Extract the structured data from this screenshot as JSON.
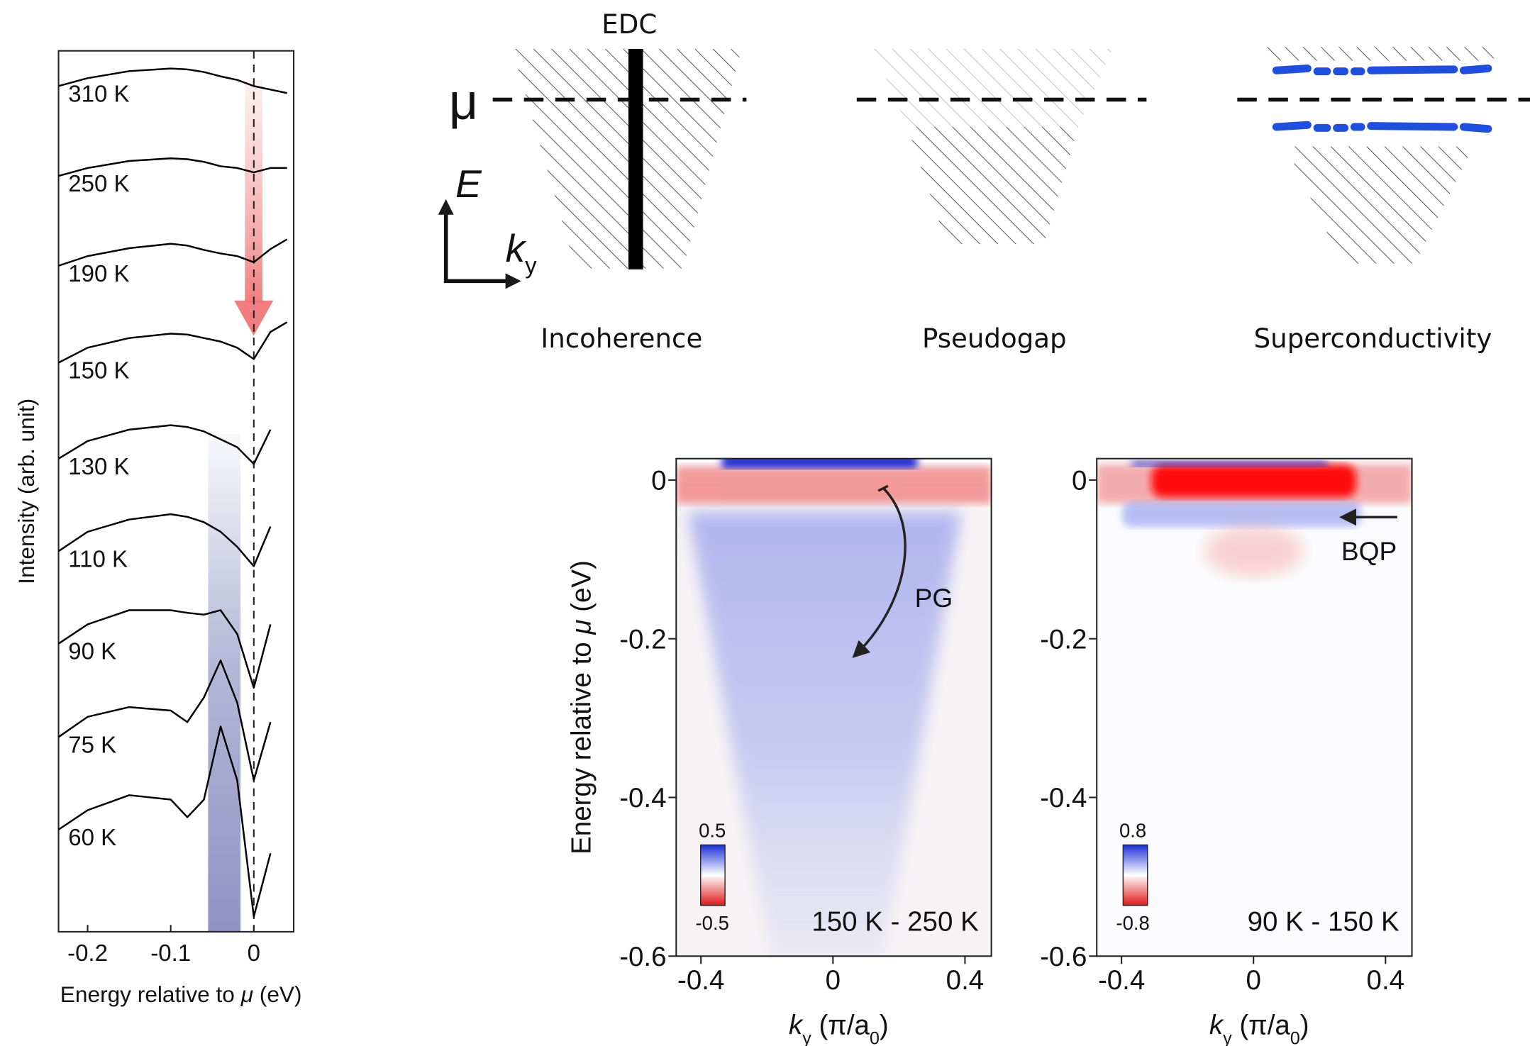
{
  "chart_data": [
    {
      "type": "line",
      "x_label": [
        {
          "text": "Energy relative to "
        },
        {
          "text": "μ",
          "style": "italic"
        },
        {
          "text": " (eV)"
        }
      ],
      "y_label": "Intensity (arb. unit)",
      "xlim": [
        -0.235,
        0.048
      ],
      "ylim": [
        0,
        10
      ],
      "xticks": [
        -0.2,
        -0.1,
        0
      ],
      "x": [
        -0.235,
        -0.2,
        -0.15,
        -0.1,
        -0.08,
        -0.06,
        -0.04,
        -0.02,
        0,
        0.02,
        0.04
      ],
      "series": [
        {
          "name": "310 K",
          "color": "#000000",
          "label_color": "#333333",
          "values": [
            9.6,
            9.69,
            9.77,
            9.8,
            9.79,
            9.76,
            9.71,
            9.67,
            9.6,
            9.56,
            9.52
          ]
        },
        {
          "name": "250 K",
          "color": "#000000",
          "label_color": "#333333",
          "values": [
            8.58,
            8.67,
            8.75,
            8.78,
            8.77,
            8.74,
            8.69,
            8.67,
            8.62,
            8.67,
            8.67
          ]
        },
        {
          "name": "190 K",
          "color": "#000000",
          "label_color": "#333333",
          "values": [
            7.56,
            7.67,
            7.76,
            7.81,
            7.79,
            7.74,
            7.7,
            7.67,
            7.6,
            7.75,
            7.86
          ]
        },
        {
          "name": "150 K",
          "color": "#000000",
          "label_color": "#333333",
          "values": [
            6.46,
            6.63,
            6.74,
            6.79,
            6.78,
            6.74,
            6.7,
            6.63,
            6.5,
            6.81,
            6.92
          ]
        },
        {
          "name": "130 K",
          "color": "#000000",
          "label_color": "#2446d8",
          "values": [
            5.37,
            5.57,
            5.7,
            5.75,
            5.73,
            5.68,
            5.59,
            5.5,
            5.31,
            5.7,
            null
          ]
        },
        {
          "name": "110 K",
          "color": "#000000",
          "label_color": "#333333",
          "values": [
            4.32,
            4.54,
            4.68,
            4.74,
            4.71,
            4.65,
            4.54,
            4.37,
            4.15,
            4.6,
            null
          ]
        },
        {
          "name": "90 K",
          "color": "#000000",
          "label_color": "#333333",
          "values": [
            3.27,
            3.49,
            3.65,
            3.65,
            3.62,
            3.6,
            3.65,
            3.38,
            2.77,
            3.49,
            null
          ]
        },
        {
          "name": "75 K",
          "color": "#000000",
          "label_color": "#333333",
          "values": [
            2.21,
            2.44,
            2.55,
            2.51,
            2.38,
            2.66,
            3.08,
            2.6,
            1.72,
            2.38,
            null
          ]
        },
        {
          "name": "60 K",
          "color": "#000000",
          "label_color": "#333333",
          "values": [
            1.16,
            1.38,
            1.55,
            1.5,
            1.3,
            1.5,
            2.33,
            1.72,
            0.17,
            0.89,
            null
          ]
        }
      ],
      "reference_x": 0,
      "highlight_x": [
        -0.055,
        -0.016
      ],
      "highlight_top": 5.65,
      "highlight_color": "#7a7fb8"
    },
    {
      "type": "heatmap",
      "y_label": [
        {
          "text": "Energy relative to "
        },
        {
          "text": "μ",
          "style": "italic"
        },
        {
          "text": " (eV)"
        }
      ],
      "x_label": [
        {
          "text": "k",
          "style": "italic"
        },
        {
          "text": "y",
          "style": "sub"
        },
        {
          "text": " (π/a"
        },
        {
          "text": "0",
          "style": "sub"
        },
        {
          "text": ")"
        }
      ],
      "xlim": [
        -0.475,
        0.48
      ],
      "ylim": [
        -0.6,
        0.027
      ],
      "xticks": [
        -0.4,
        0,
        0.4
      ],
      "yticks": [
        -0.6,
        -0.4,
        -0.2,
        0
      ],
      "zlim": [
        -0.5,
        0.5
      ],
      "panel_label": "150 K - 250 K",
      "feature_label": "PG"
    },
    {
      "type": "heatmap",
      "x_label": [
        {
          "text": "k",
          "style": "italic"
        },
        {
          "text": "y",
          "style": "sub"
        },
        {
          "text": " (π/a"
        },
        {
          "text": "0",
          "style": "sub"
        },
        {
          "text": ")"
        }
      ],
      "xlim": [
        -0.475,
        0.48
      ],
      "ylim": [
        -0.6,
        0.027
      ],
      "xticks": [
        -0.4,
        0,
        0.4
      ],
      "yticks": [
        -0.6,
        -0.4,
        -0.2,
        0
      ],
      "zlim": [
        -0.8,
        0.8
      ],
      "panel_label": "90 K - 150 K",
      "feature_label": "BQP"
    }
  ],
  "diagram": {
    "edc": "EDC",
    "mu": "μ",
    "energy_axis": "E",
    "momentum_axis": "k",
    "momentum_sub": "y",
    "panels": [
      "Incoherence",
      "Pseudogap",
      "Superconductivity"
    ]
  }
}
